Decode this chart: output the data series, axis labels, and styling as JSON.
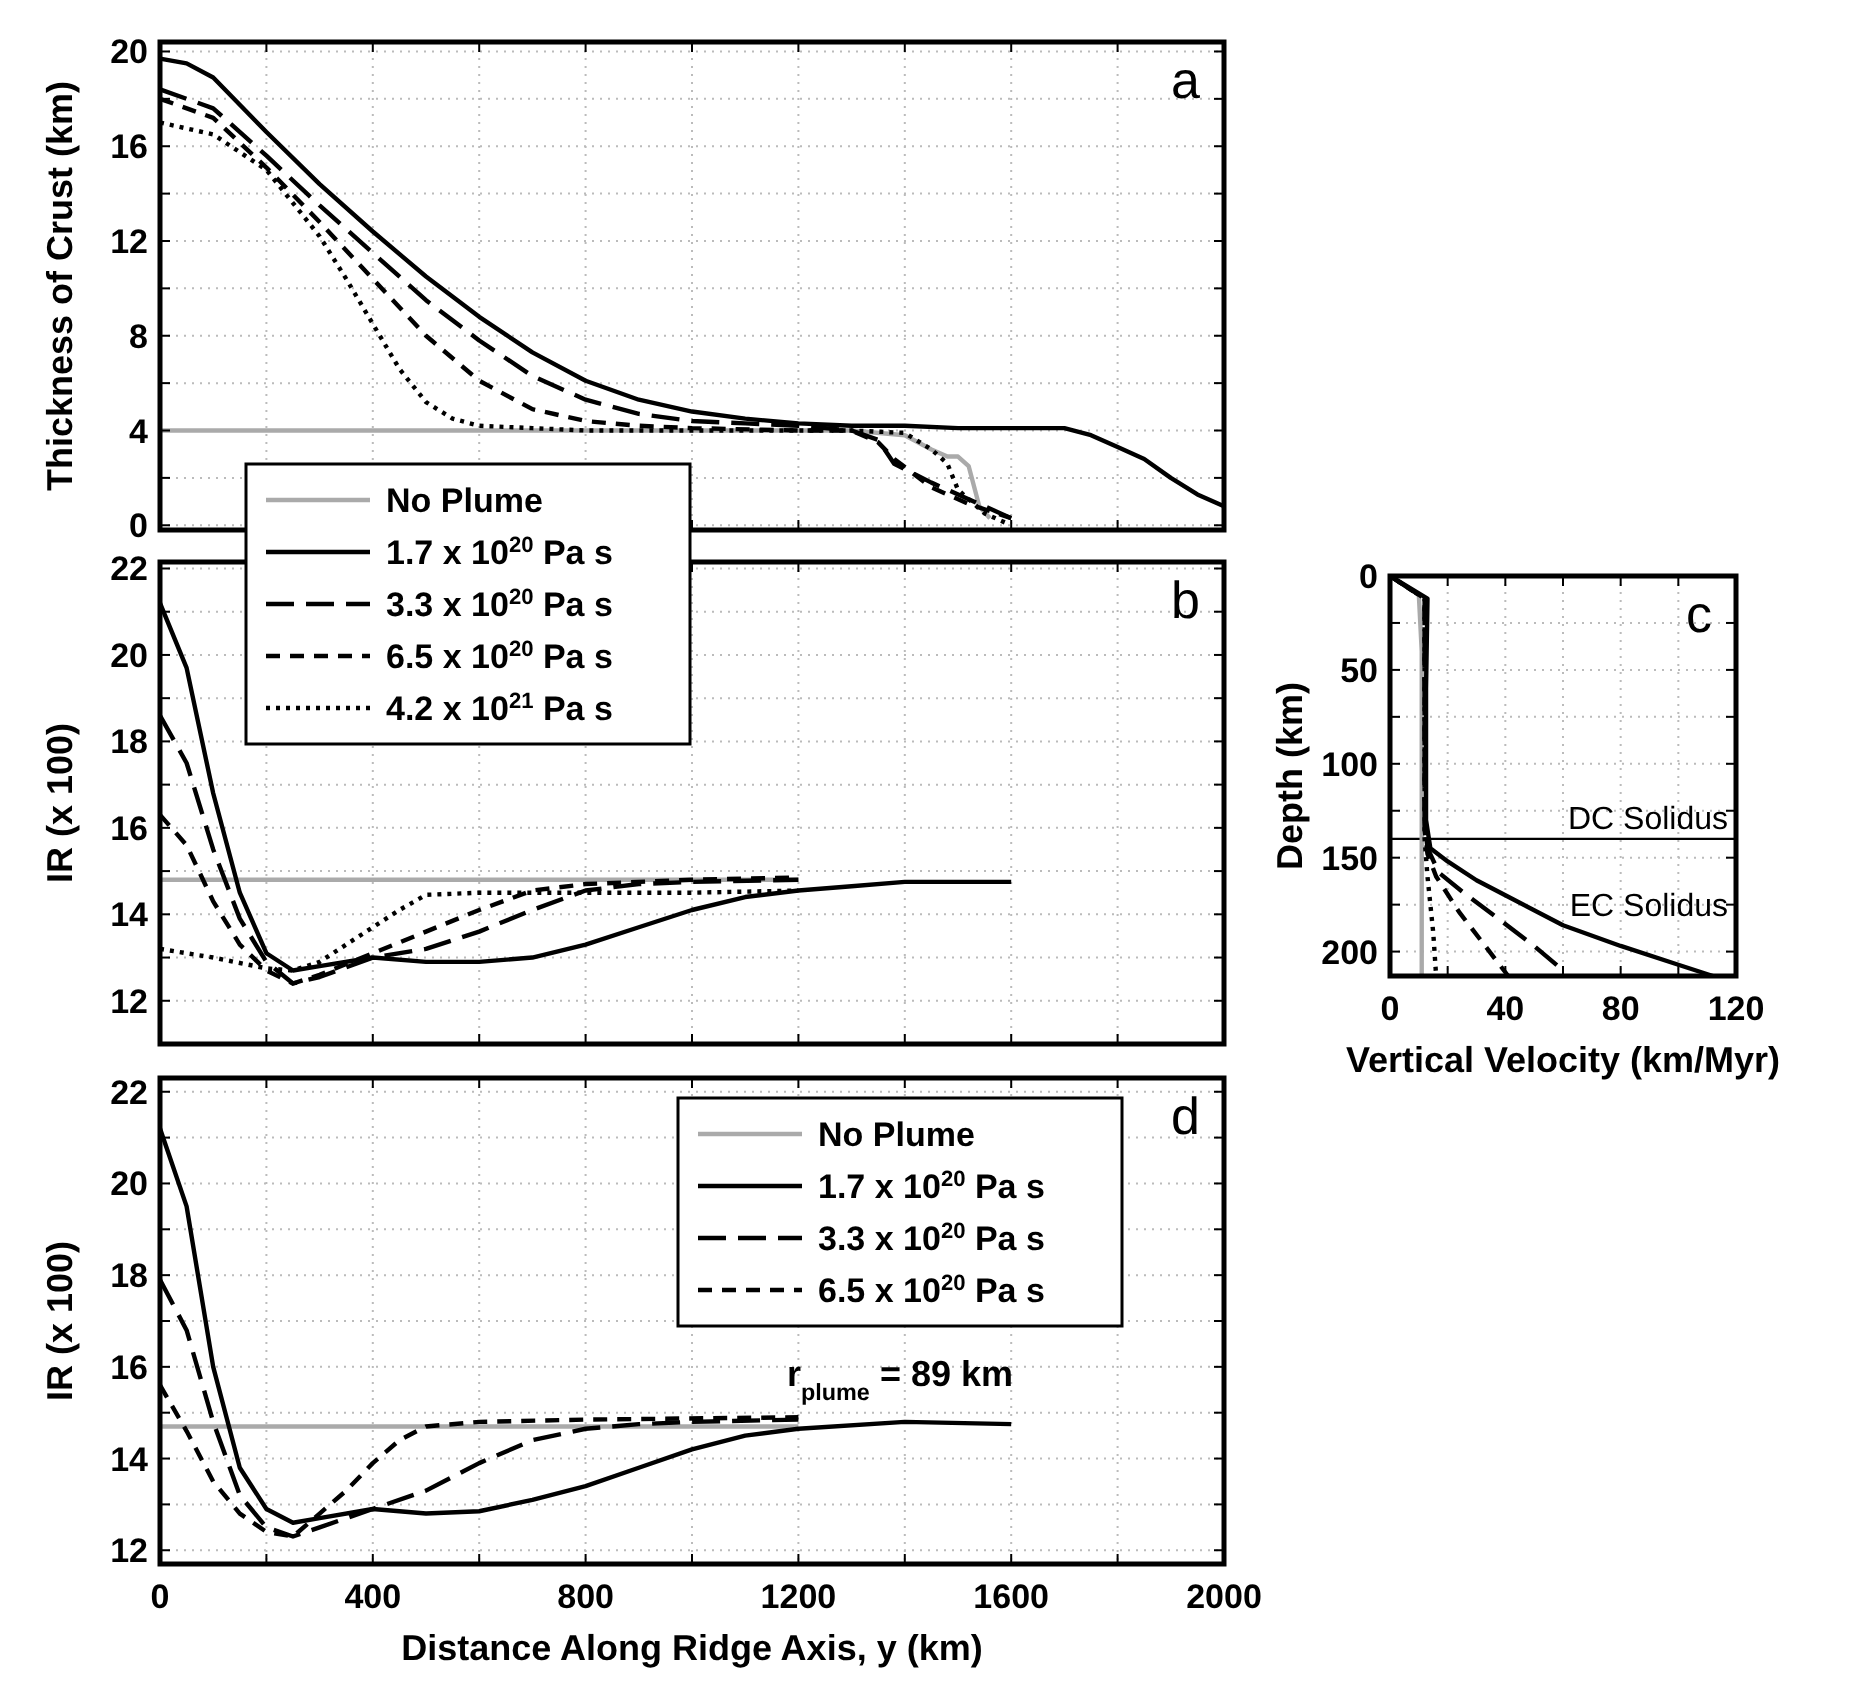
{
  "chart_data": [
    {
      "type": "line",
      "ylabel": "Thickness of Crust (km)",
      "xlim": [
        0,
        2000
      ],
      "ylim": [
        -0.2,
        20.4
      ],
      "xticks": [
        0,
        {
          "value": 200,
          "label": null
        },
        400,
        {
          "value": 600,
          "label": null
        },
        800,
        {
          "value": 1000,
          "label": null
        },
        1200,
        {
          "value": 1400,
          "label": null
        },
        1600,
        {
          "value": 1800,
          "label": null
        },
        2000
      ],
      "yticks": [
        0,
        {
          "value": 2,
          "label": null
        },
        4,
        {
          "value": 6,
          "label": null
        },
        8,
        {
          "value": 10,
          "label": null
        },
        12,
        {
          "value": 14,
          "label": null
        },
        16,
        {
          "value": 18,
          "label": null
        },
        20
      ],
      "grid": true,
      "legend": false,
      "tick_labels": "y",
      "annotations": [
        "a"
      ],
      "series": [
        {
          "color": "#aaaaaa",
          "line_style": "solid",
          "x": [
            0,
            1300,
            1400,
            1450,
            1480,
            1500,
            1520,
            1540,
            1560
          ],
          "values": [
            4.0,
            4.0,
            3.8,
            3.2,
            2.9,
            2.9,
            2.5,
            0.8,
            0.3
          ]
        },
        {
          "color": "#000000",
          "line_style": "solid",
          "x": [
            0,
            50,
            100,
            200,
            300,
            400,
            500,
            600,
            700,
            800,
            900,
            1000,
            1100,
            1200,
            1300,
            1400,
            1500,
            1600,
            1700,
            1750,
            1800,
            1850,
            1900,
            1950,
            2000
          ],
          "values": [
            19.7,
            19.5,
            18.9,
            16.6,
            14.4,
            12.4,
            10.5,
            8.8,
            7.3,
            6.1,
            5.3,
            4.8,
            4.5,
            4.3,
            4.2,
            4.2,
            4.1,
            4.1,
            4.1,
            3.8,
            3.3,
            2.8,
            2.0,
            1.3,
            0.8
          ]
        },
        {
          "color": "#000000",
          "line_style": "dashed",
          "x": [
            0,
            100,
            200,
            300,
            400,
            500,
            600,
            700,
            800,
            900,
            1000,
            1100,
            1200,
            1300,
            1350,
            1380,
            1450,
            1520,
            1600
          ],
          "values": [
            18.4,
            17.6,
            15.6,
            13.5,
            11.5,
            9.5,
            7.8,
            6.3,
            5.3,
            4.7,
            4.4,
            4.3,
            4.2,
            4.0,
            3.6,
            2.6,
            1.8,
            1.1,
            0.3
          ]
        },
        {
          "color": "#000000",
          "line_style": "dashed",
          "x": [
            0,
            100,
            200,
            300,
            400,
            500,
            600,
            700,
            800,
            900,
            1000,
            1200,
            1300,
            1350,
            1380,
            1450,
            1520,
            1600
          ],
          "values": [
            18.0,
            17.2,
            15.1,
            12.8,
            10.4,
            8.0,
            6.1,
            4.9,
            4.4,
            4.2,
            4.1,
            4.0,
            4.0,
            3.5,
            2.8,
            1.6,
            0.9,
            0.3
          ]
        },
        {
          "color": "#000000",
          "line_style": "dotted",
          "x": [
            0,
            100,
            200,
            300,
            350,
            400,
            450,
            500,
            550,
            600,
            700,
            800,
            1300,
            1400,
            1450,
            1480,
            1500,
            1550,
            1590
          ],
          "values": [
            17.0,
            16.5,
            15.0,
            12.2,
            10.4,
            8.5,
            6.6,
            5.2,
            4.5,
            4.2,
            4.1,
            4.0,
            4.0,
            3.9,
            3.2,
            2.6,
            1.5,
            0.5,
            0.1
          ]
        }
      ]
    },
    {
      "type": "line",
      "ylabel": "IR (x 100)",
      "xlim": [
        0,
        2000
      ],
      "ylim": [
        11,
        22.15
      ],
      "xticks": [
        0,
        {
          "value": 200,
          "label": null
        },
        400,
        {
          "value": 600,
          "label": null
        },
        800,
        {
          "value": 1000,
          "label": null
        },
        1200,
        {
          "value": 1400,
          "label": null
        },
        1600,
        {
          "value": 1800,
          "label": null
        },
        2000
      ],
      "yticks": [
        {
          "value": 11,
          "label": null
        },
        12,
        {
          "value": 13,
          "label": null
        },
        14,
        {
          "value": 15,
          "label": null
        },
        16,
        {
          "value": 17,
          "label": null
        },
        18,
        {
          "value": 19,
          "label": null
        },
        20,
        {
          "value": 21,
          "label": null
        },
        22
      ],
      "grid": true,
      "legend": "top left",
      "tick_labels": "y",
      "annotations": [
        "b"
      ],
      "series": [
        {
          "name": "No Plume",
          "color": "#aaaaaa",
          "line_style": "solid",
          "x": [
            0,
            1200
          ],
          "values": [
            14.8,
            14.8
          ]
        },
        {
          "name": "1.7 x 10$^{20}$ Pa s",
          "color": "#000000",
          "line_style": "solid",
          "x": [
            0,
            50,
            100,
            150,
            200,
            250,
            300,
            400,
            500,
            600,
            700,
            800,
            900,
            1000,
            1100,
            1200,
            1300,
            1400,
            1600
          ],
          "values": [
            21.2,
            19.7,
            16.8,
            14.5,
            13.1,
            12.7,
            12.8,
            13.0,
            12.9,
            12.9,
            13.0,
            13.3,
            13.7,
            14.1,
            14.4,
            14.55,
            14.65,
            14.75,
            14.75
          ]
        },
        {
          "name": "3.3 x 10$^{20}$ Pa s",
          "color": "#000000",
          "line_style": "dashed",
          "x": [
            0,
            50,
            100,
            150,
            200,
            250,
            300,
            400,
            500,
            600,
            700,
            800,
            900,
            1000,
            1200
          ],
          "values": [
            18.6,
            17.5,
            15.5,
            13.9,
            12.9,
            12.4,
            12.55,
            13.0,
            13.2,
            13.6,
            14.1,
            14.55,
            14.7,
            14.75,
            14.8
          ]
        },
        {
          "name": "6.5 x 10$^{20}$ Pa s",
          "color": "#000000",
          "line_style": "dashed",
          "x": [
            0,
            50,
            100,
            150,
            200,
            250,
            300,
            400,
            500,
            600,
            700,
            800,
            1000,
            1200
          ],
          "values": [
            16.3,
            15.6,
            14.3,
            13.3,
            12.7,
            12.4,
            12.6,
            13.1,
            13.6,
            14.1,
            14.55,
            14.7,
            14.8,
            14.85
          ]
        },
        {
          "name": "4.2 x 10$^{21}$ Pa s",
          "color": "#000000",
          "line_style": "dotted",
          "x": [
            0,
            100,
            200,
            250,
            300,
            350,
            400,
            450,
            500,
            600,
            800,
            1000,
            1200
          ],
          "values": [
            13.2,
            13.0,
            12.75,
            12.7,
            12.9,
            13.3,
            13.7,
            14.1,
            14.45,
            14.5,
            14.5,
            14.5,
            14.55
          ]
        }
      ]
    },
    {
      "type": "line",
      "xlabel": "Vertical Velocity (km/Myr)",
      "ylabel": "Depth (km)",
      "xlim": [
        0,
        120
      ],
      "ylim": [
        213,
        0
      ],
      "xticks": [
        0,
        {
          "value": 20,
          "label": null
        },
        40,
        {
          "value": 60,
          "label": null
        },
        80,
        {
          "value": 100,
          "label": null
        },
        120
      ],
      "yticks": [
        0,
        {
          "value": 25,
          "label": null
        },
        50,
        {
          "value": 75,
          "label": null
        },
        100,
        {
          "value": 125,
          "label": null
        },
        150,
        {
          "value": 175,
          "label": null
        },
        200
      ],
      "grid": true,
      "legend": false,
      "annotations": [
        "c",
        "EC Solidus"
      ],
      "ref_lines": [
        {
          "axis": "y",
          "value": 140,
          "label": "DC Solidus",
          "color": "#000000"
        }
      ],
      "series": [
        {
          "color": "#aaaaaa",
          "line_style": "solid",
          "x": [
            0,
            10,
            11,
            11,
            11
          ],
          "values": [
            0,
            10,
            40,
            150,
            213
          ]
        },
        {
          "color": "#000000",
          "line_style": "solid",
          "x": [
            0,
            13,
            12.5,
            12.5,
            14,
            20,
            30,
            40,
            60,
            80,
            100,
            112
          ],
          "values": [
            0,
            12,
            60,
            130,
            145,
            152,
            162,
            170,
            186,
            197,
            207,
            213
          ]
        },
        {
          "color": "#000000",
          "line_style": "dashed",
          "x": [
            0,
            12,
            12,
            13,
            17,
            25,
            38,
            50,
            60
          ],
          "values": [
            0,
            12,
            130,
            145,
            158,
            168,
            183,
            197,
            210
          ]
        },
        {
          "color": "#000000",
          "line_style": "dashed",
          "x": [
            0,
            12,
            12,
            13,
            16,
            24,
            32,
            41
          ],
          "values": [
            0,
            12,
            135,
            148,
            160,
            179,
            195,
            213
          ]
        },
        {
          "color": "#000000",
          "line_style": "dotted",
          "x": [
            0,
            12,
            12,
            13,
            15,
            16
          ],
          "values": [
            0,
            12,
            140,
            160,
            190,
            213
          ]
        }
      ]
    },
    {
      "type": "line",
      "xlabel": "Distance Along Ridge Axis, y (km)",
      "ylabel": "IR (x 100)",
      "xlim": [
        0,
        2000
      ],
      "ylim": [
        11.7,
        22.3
      ],
      "xticks": [
        0,
        {
          "value": 200,
          "label": null
        },
        400,
        {
          "value": 600,
          "label": null
        },
        800,
        {
          "value": 1000,
          "label": null
        },
        1200,
        {
          "value": 1400,
          "label": null
        },
        1600,
        {
          "value": 1800,
          "label": null
        },
        2000
      ],
      "yticks": [
        12,
        {
          "value": 13,
          "label": null
        },
        14,
        {
          "value": 15,
          "label": null
        },
        16,
        {
          "value": 17,
          "label": null
        },
        18,
        {
          "value": 19,
          "label": null
        },
        20,
        {
          "value": 21,
          "label": null
        },
        22
      ],
      "grid": true,
      "legend": "top right",
      "annotations": [
        "d",
        "r$_{plume}$ = 89 km"
      ],
      "series": [
        {
          "name": "No Plume",
          "color": "#aaaaaa",
          "line_style": "solid",
          "x": [
            0,
            1200
          ],
          "values": [
            14.7,
            14.7
          ]
        },
        {
          "name": "1.7 x 10$^{20}$ Pa s",
          "color": "#000000",
          "line_style": "solid",
          "x": [
            0,
            50,
            100,
            150,
            200,
            250,
            300,
            400,
            500,
            600,
            700,
            800,
            900,
            1000,
            1100,
            1200,
            1400,
            1600
          ],
          "values": [
            21.2,
            19.5,
            16.0,
            13.8,
            12.9,
            12.6,
            12.7,
            12.9,
            12.8,
            12.85,
            13.1,
            13.4,
            13.8,
            14.2,
            14.5,
            14.65,
            14.8,
            14.75
          ]
        },
        {
          "name": "3.3 x 10$^{20}$ Pa s",
          "color": "#000000",
          "line_style": "dashed",
          "x": [
            0,
            50,
            100,
            150,
            200,
            250,
            300,
            400,
            500,
            600,
            700,
            800,
            900,
            1000,
            1200
          ],
          "values": [
            17.9,
            16.8,
            14.8,
            13.2,
            12.5,
            12.3,
            12.5,
            12.9,
            13.3,
            13.9,
            14.4,
            14.65,
            14.75,
            14.8,
            14.85
          ]
        },
        {
          "name": "6.5 x 10$^{20}$ Pa s",
          "color": "#000000",
          "line_style": "dashed",
          "x": [
            0,
            50,
            100,
            150,
            200,
            250,
            300,
            350,
            400,
            450,
            500,
            600,
            800,
            1200
          ],
          "values": [
            15.6,
            14.6,
            13.5,
            12.8,
            12.4,
            12.3,
            12.8,
            13.3,
            13.9,
            14.4,
            14.7,
            14.8,
            14.85,
            14.9
          ]
        }
      ]
    }
  ]
}
